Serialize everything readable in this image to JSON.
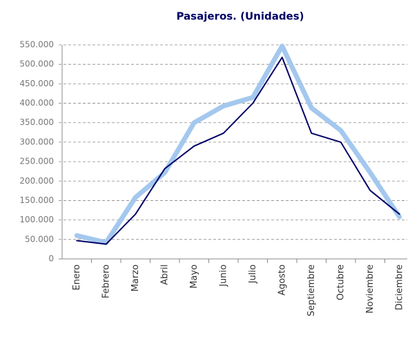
{
  "chart_data": {
    "type": "line",
    "title": "Pasajeros. (Unidades)",
    "categories": [
      "Enero",
      "Febrero",
      "Marzo",
      "Abril",
      "Mayo",
      "Junio",
      "Julio",
      "Agosto",
      "Septiembre",
      "Octubre",
      "Noviembre",
      "Diciembre"
    ],
    "series": [
      {
        "color": "#a4c8ee",
        "values": [
          60000,
          42000,
          158000,
          222000,
          350000,
          393000,
          415000,
          547000,
          388000,
          330000,
          222000,
          108000
        ]
      },
      {
        "color": "#000066",
        "values": [
          47000,
          38000,
          115000,
          232000,
          290000,
          323000,
          400000,
          518000,
          323000,
          300000,
          176000,
          115000
        ]
      }
    ],
    "ylim": [
      0,
      550000
    ],
    "yticks": [
      0,
      {
        "value": 50000,
        "label": "50.000"
      },
      {
        "value": 100000,
        "label": "100.000"
      },
      {
        "value": 150000,
        "label": "150.000"
      },
      {
        "value": 200000,
        "label": "200.000"
      },
      {
        "value": 250000,
        "label": "250.000"
      },
      {
        "value": 300000,
        "label": "300.000"
      },
      {
        "value": 350000,
        "label": "350.000"
      },
      {
        "value": 400000,
        "label": "400.000"
      },
      {
        "value": 450000,
        "label": "450.000"
      },
      {
        "value": 500000,
        "label": "500.000"
      },
      {
        "value": 550000,
        "label": "550.000"
      }
    ],
    "grid": true
  }
}
